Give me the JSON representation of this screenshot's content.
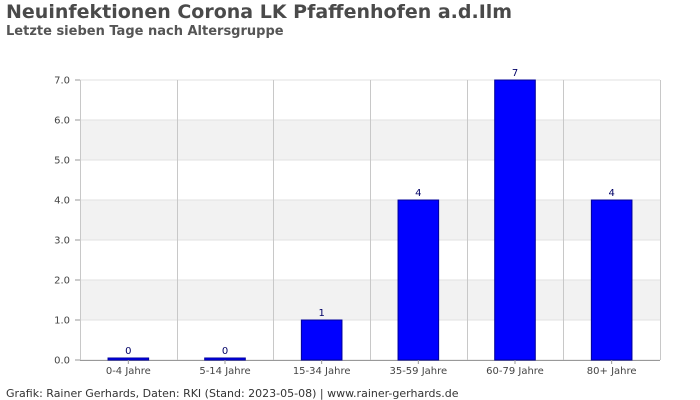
{
  "header": {
    "title": "Neuinfektionen Corona LK Pfaffenhofen a.d.Ilm",
    "subtitle": "Letzte sieben Tage nach Altersgruppe"
  },
  "footer": {
    "credit": "Grafik: Rainer Gerhards, Daten: RKI (Stand: 2023-05-08) | www.rainer-gerhards.de"
  },
  "chart_data": {
    "type": "bar",
    "title": "Neuinfektionen Corona LK Pfaffenhofen a.d.Ilm",
    "subtitle": "Letzte sieben Tage nach Altersgruppe",
    "xlabel": "",
    "ylabel": "",
    "categories": [
      "0-4 Jahre",
      "5-14 Jahre",
      "15-34 Jahre",
      "35-59 Jahre",
      "60-79 Jahre",
      "80+ Jahre"
    ],
    "values": [
      0,
      0,
      1,
      4,
      7,
      4
    ],
    "data_labels": [
      "0",
      "0",
      "1",
      "4",
      "7",
      "4"
    ],
    "yticks": [
      "0.0",
      "1.0",
      "2.0",
      "3.0",
      "4.0",
      "5.0",
      "6.0",
      "7.0"
    ],
    "ylim": [
      0,
      7
    ],
    "grid": true,
    "legend": "none",
    "colors": {
      "bar": "#0000ff",
      "bar_edge": "#000099",
      "band": "#f2f2f2",
      "grid": "#c8c8c8",
      "axis": "#999999"
    }
  }
}
